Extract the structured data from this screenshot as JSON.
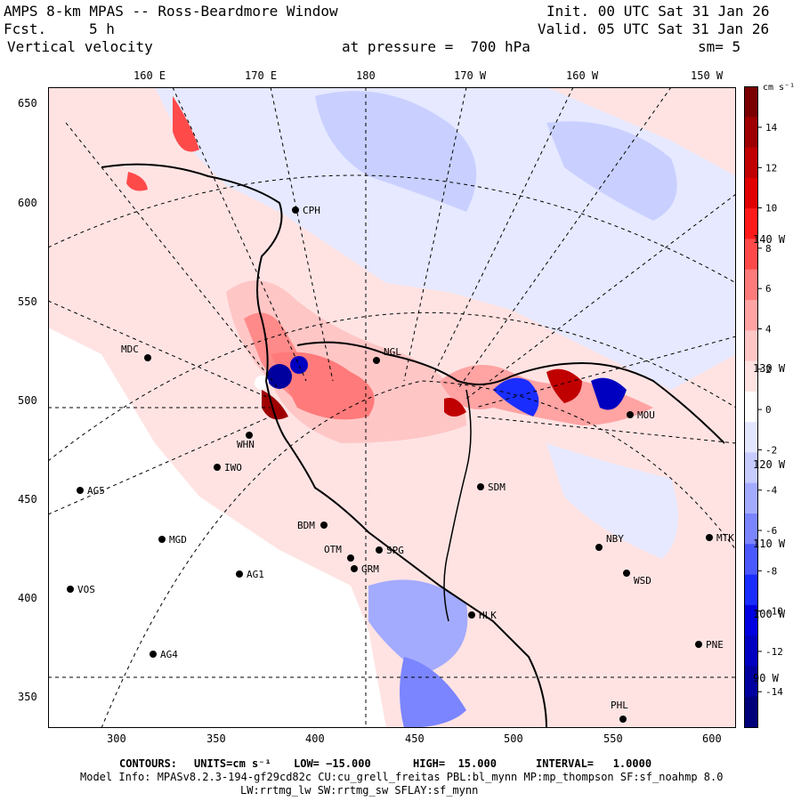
{
  "header": {
    "model_title": "AMPS 8-km MPAS -- Ross-Beardmore Window",
    "init_line": "Init. 00 UTC Sat 31 Jan 26",
    "fcst_label": "Fcst.",
    "fcst_value": "5 h",
    "valid_line": "Valid. 05 UTC Sat 31 Jan 26",
    "field_name": "Vertical velocity",
    "pressure_line": "at pressure =  700 hPa",
    "smoothing": "sm= 5"
  },
  "axes": {
    "top_longitudes": [
      "160 E",
      "170 E",
      "180",
      "170 W",
      "160 W",
      "150 W"
    ],
    "x_ticks": [
      "300",
      "350",
      "400",
      "450",
      "500",
      "550",
      "600"
    ],
    "y_ticks": [
      "650",
      "600",
      "550",
      "500",
      "450",
      "400",
      "350"
    ],
    "right_longitudes": [
      "140 W",
      "130 W",
      "120 W",
      "110 W",
      "100 W",
      "90 W"
    ]
  },
  "colorbar": {
    "units": "cm s⁻¹",
    "ticks": [
      "14",
      "12",
      "10",
      "8",
      "6",
      "4",
      "2",
      "0",
      "-2",
      "-4",
      "-6",
      "-8",
      "-10",
      "-12",
      "-14"
    ],
    "colors": [
      "#7a0000",
      "#9e0000",
      "#c00000",
      "#e00000",
      "#ff1a1a",
      "#ff4a4a",
      "#ff7a7a",
      "#ffa3a3",
      "#ffc6c6",
      "#ffe3e3",
      "#ffffff",
      "#e3e6ff",
      "#c6ccff",
      "#a3abff",
      "#7a85ff",
      "#4a58ff",
      "#1a2dff",
      "#0000e0",
      "#0000c0",
      "#00009e",
      "#00007a"
    ]
  },
  "stations": [
    {
      "id": "MDC"
    },
    {
      "id": "NGL"
    },
    {
      "id": "WHN"
    },
    {
      "id": "IWO"
    },
    {
      "id": "AG5"
    },
    {
      "id": "BDM"
    },
    {
      "id": "SDM"
    },
    {
      "id": "OTM"
    },
    {
      "id": "GRM"
    },
    {
      "id": "MGD"
    },
    {
      "id": "AG1"
    },
    {
      "id": "VOS"
    },
    {
      "id": "AG4"
    },
    {
      "id": "MOU"
    },
    {
      "id": "NBY"
    },
    {
      "id": "WSD"
    },
    {
      "id": "MTK"
    },
    {
      "id": "PNE"
    },
    {
      "id": "PHL"
    },
    {
      "id": "HLK"
    },
    {
      "id": "SPG"
    },
    {
      "id": "CPH"
    }
  ],
  "footer": {
    "contours_label": "CONTOURS:",
    "units_label": "UNITS=cm s⁻¹",
    "low": "LOW= −15.000",
    "high": "HIGH=  15.000",
    "interval": "INTERVAL=   1.0000",
    "model_info": "Model Info: MPASv8.2.3-194-gf29cd82c CU:cu_grell_freitas PBL:bl_mynn MP:mp_thompson SF:sf_noahmp 8.0",
    "model_info2": "LW:rrtmg_lw SW:rrtmg_sw SFLAY:sf_mynn"
  }
}
